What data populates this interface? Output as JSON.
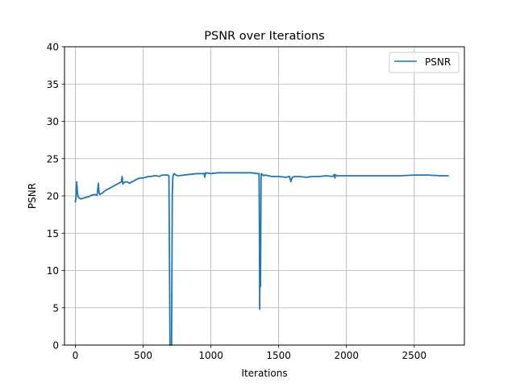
{
  "chart_data": {
    "type": "line",
    "title": "PSNR over Iterations",
    "xlabel": "Iterations",
    "ylabel": "PSNR",
    "xlim": [
      -80,
      2870
    ],
    "ylim": [
      0,
      40
    ],
    "xticks": [
      0,
      500,
      1000,
      1500,
      2000,
      2500
    ],
    "yticks": [
      0,
      5,
      10,
      15,
      20,
      25,
      30,
      35,
      40
    ],
    "grid": true,
    "legend": {
      "position": "top-right",
      "entries": [
        "PSNR"
      ]
    },
    "series": [
      {
        "name": "PSNR",
        "color": "#1f77b4",
        "x": [
          0,
          5,
          10,
          15,
          20,
          30,
          40,
          60,
          80,
          100,
          120,
          140,
          160,
          170,
          175,
          180,
          200,
          220,
          240,
          260,
          280,
          300,
          320,
          340,
          345,
          350,
          360,
          380,
          400,
          420,
          440,
          460,
          480,
          500,
          520,
          540,
          560,
          580,
          600,
          620,
          640,
          660,
          680,
          690,
          695,
          698,
          700,
          702,
          705,
          710,
          715,
          718,
          720,
          725,
          730,
          740,
          760,
          800,
          850,
          900,
          950,
          955,
          960,
          1000,
          1050,
          1100,
          1150,
          1200,
          1250,
          1300,
          1340,
          1355,
          1358,
          1360,
          1362,
          1364,
          1366,
          1368,
          1370,
          1372,
          1375,
          1380,
          1390,
          1400,
          1450,
          1500,
          1550,
          1580,
          1590,
          1600,
          1620,
          1650,
          1700,
          1750,
          1800,
          1850,
          1900,
          1910,
          1915,
          1920,
          1930,
          1950,
          2000,
          2050,
          2100,
          2200,
          2300,
          2400,
          2500,
          2600,
          2700,
          2750
        ],
        "values": [
          19.2,
          19.8,
          21.9,
          20.5,
          19.9,
          19.7,
          19.6,
          19.7,
          19.8,
          19.9,
          20.1,
          20.2,
          20.1,
          21.7,
          20.4,
          20.2,
          20.4,
          20.7,
          20.9,
          21.1,
          21.3,
          21.5,
          21.7,
          21.9,
          22.6,
          21.6,
          21.8,
          21.9,
          21.7,
          21.9,
          22.1,
          22.3,
          22.4,
          22.4,
          22.5,
          22.6,
          22.6,
          22.7,
          22.7,
          22.6,
          22.8,
          22.8,
          22.8,
          22.7,
          10.0,
          0.0,
          0.0,
          0.0,
          0.0,
          0.0,
          20.0,
          22.0,
          22.6,
          22.9,
          23.0,
          22.8,
          22.7,
          22.8,
          22.9,
          23.0,
          23.0,
          22.5,
          23.1,
          23.0,
          23.1,
          23.1,
          23.1,
          23.1,
          23.1,
          23.1,
          23.0,
          23.0,
          15.0,
          4.8,
          16.2,
          10.0,
          7.8,
          16.0,
          22.5,
          23.0,
          22.8,
          22.9,
          22.7,
          22.8,
          22.6,
          22.6,
          22.5,
          22.6,
          21.9,
          22.5,
          22.6,
          22.6,
          22.5,
          22.6,
          22.6,
          22.7,
          22.6,
          22.9,
          22.4,
          22.8,
          22.7,
          22.7,
          22.7,
          22.7,
          22.7,
          22.7,
          22.7,
          22.7,
          22.8,
          22.8,
          22.7,
          22.7
        ]
      }
    ]
  }
}
